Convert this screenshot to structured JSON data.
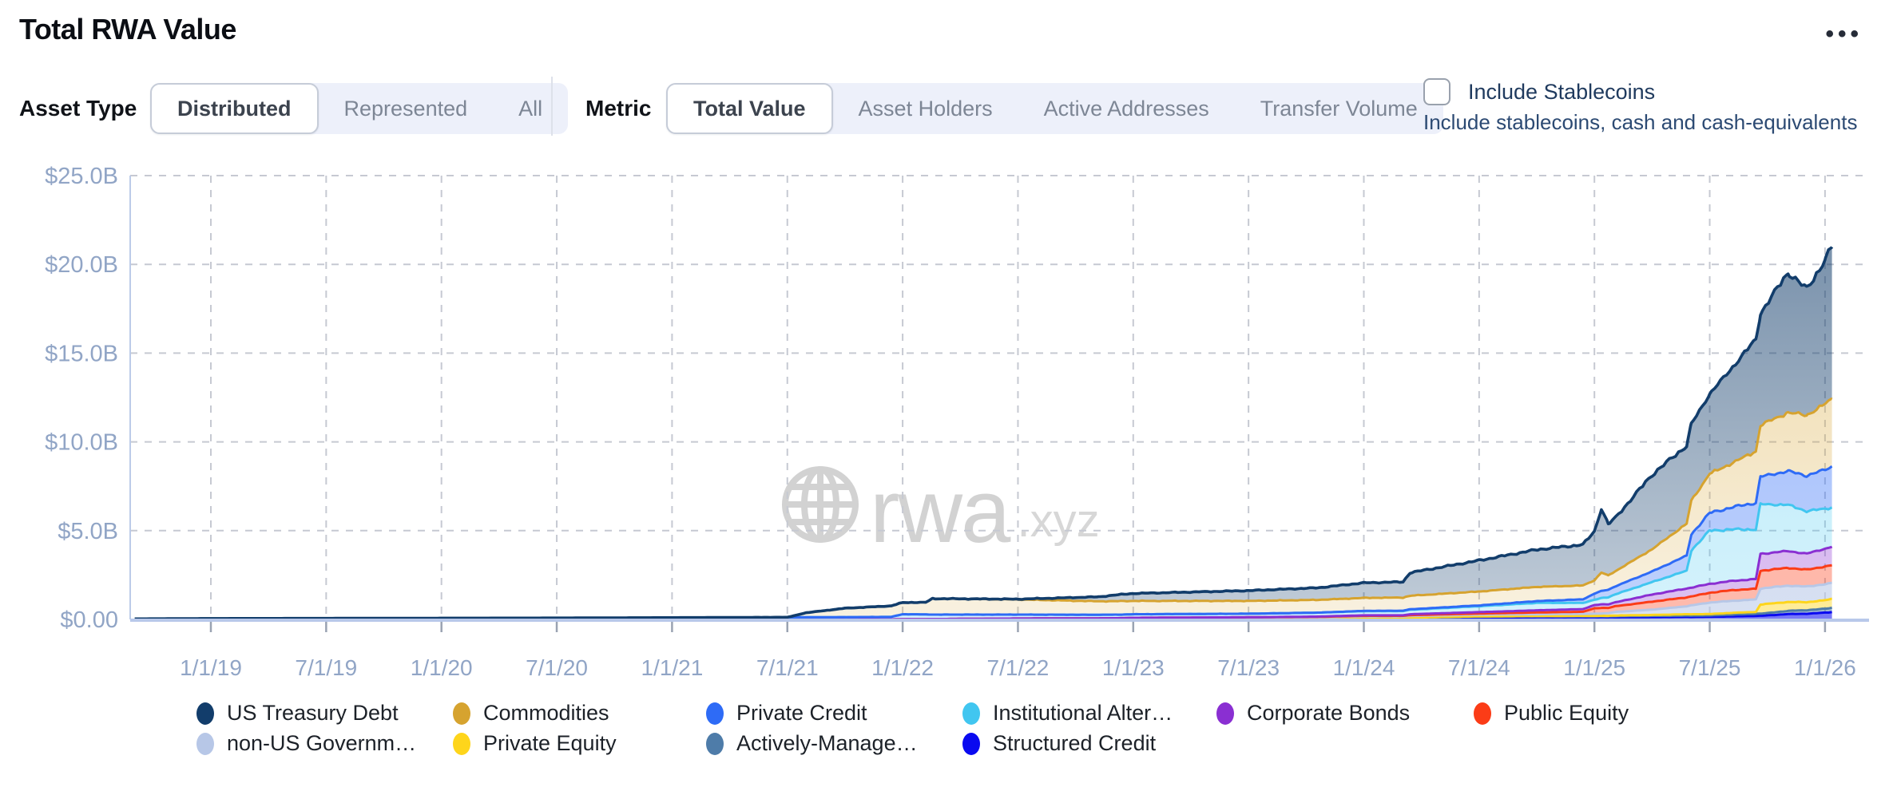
{
  "header": {
    "title": "Total RWA Value",
    "menu_label": "•••"
  },
  "controls": {
    "asset_type": {
      "label": "Asset Type",
      "options": [
        "Distributed",
        "Represented",
        "All"
      ],
      "selected": "Distributed"
    },
    "metric": {
      "label": "Metric",
      "options": [
        "Total Value",
        "Asset Holders",
        "Active Addresses",
        "Transfer Volume"
      ],
      "selected": "Total Value"
    },
    "stablecoins": {
      "label": "Include Stablecoins",
      "description": "Include stablecoins, cash and cash-equivalents",
      "checked": false
    }
  },
  "watermark": {
    "brand": "rwa",
    "tld": ".xyz",
    "icon": "globe-icon"
  },
  "colors": {
    "accent_background": "#edf0fa",
    "axis_label": "#91a5c6",
    "gridline": "#c6c9d2",
    "axis_line": "#bccbe8",
    "zero_line": "#b8c8ea",
    "tick_mark": "#9aa3b2",
    "watermark": "#d2d2d2",
    "title_text": "#0b0e14",
    "checkbox_text": "#1f3a5e"
  },
  "chart_data": {
    "type": "area",
    "stacked": true,
    "title": "Total RWA Value",
    "unit": "USD billions",
    "grid": "dashed",
    "legend_position": "bottom",
    "ylim": [
      0,
      25
    ],
    "y_tick_values": [
      25,
      20,
      15,
      10,
      5,
      0
    ],
    "y_tick_labels": [
      "$25.0B",
      "$20.0B",
      "$15.0B",
      "$10.0B",
      "$5.0B",
      "$0.00"
    ],
    "x_tick_years": [
      2019.0,
      2019.5,
      2020.0,
      2020.5,
      2021.0,
      2021.5,
      2022.0,
      2022.5,
      2023.0,
      2023.5,
      2024.0,
      2024.5,
      2025.0,
      2025.5,
      2026.0
    ],
    "x_tick_labels": [
      "1/1/19",
      "7/1/19",
      "1/1/20",
      "7/1/20",
      "1/1/21",
      "7/1/21",
      "1/1/22",
      "7/1/22",
      "1/1/23",
      "7/1/23",
      "1/1/24",
      "7/1/24",
      "1/1/25",
      "7/1/25",
      "1/1/26"
    ],
    "x_range_years": [
      2018.67,
      2026.03
    ],
    "anchors_t": [
      2018.67,
      2019.0,
      2019.5,
      2020.0,
      2020.5,
      2021.0,
      2021.5,
      2021.58,
      2021.75,
      2021.95,
      2022.0,
      2022.1,
      2022.13,
      2022.5,
      2022.85,
      2022.95,
      2023.0,
      2023.5,
      2023.8,
      2024.0,
      2024.17,
      2024.2,
      2024.5,
      2024.75,
      2024.95,
      2025.0,
      2025.03,
      2025.06,
      2025.09,
      2025.25,
      2025.4,
      2025.42,
      2025.5,
      2025.6,
      2025.7,
      2025.72,
      2025.84,
      2025.92,
      2026.0,
      2026.03
    ],
    "series": [
      {
        "name": "us_treasury",
        "label": "US Treasury Debt",
        "color": "#123d6b",
        "values": [
          0,
          0,
          0,
          0,
          0,
          0,
          0,
          0,
          0,
          0,
          0,
          0,
          0,
          0.02,
          0.25,
          0.38,
          0.42,
          0.58,
          0.68,
          0.85,
          0.88,
          1.3,
          1.75,
          2.1,
          2.3,
          2.75,
          3.6,
          2.9,
          3.0,
          4.2,
          4.4,
          4.3,
          4.5,
          5.4,
          6.3,
          6.3,
          7.9,
          7.1,
          8.1,
          8.6
        ]
      },
      {
        "name": "commodities",
        "label": "Commodities",
        "color": "#d6a32f",
        "values": [
          0,
          0,
          0,
          0,
          0,
          0,
          0,
          0.25,
          0.5,
          0.62,
          0.66,
          0.68,
          0.9,
          0.85,
          0.76,
          0.76,
          0.75,
          0.72,
          0.72,
          0.73,
          0.74,
          0.76,
          0.78,
          0.8,
          0.78,
          0.75,
          1.05,
          0.8,
          0.85,
          1.25,
          1.8,
          1.9,
          2.2,
          2.5,
          2.9,
          2.9,
          3.3,
          3.4,
          3.7,
          3.8
        ]
      },
      {
        "name": "private_credit",
        "label": "Private Credit",
        "color": "#2e6bf6",
        "values": [
          0,
          0,
          0,
          0,
          0,
          0,
          0,
          0,
          0,
          0,
          0,
          0,
          0,
          0,
          0,
          0,
          0,
          0,
          0,
          0.02,
          0.02,
          0.03,
          0.05,
          0.1,
          0.2,
          0.35,
          0.4,
          0.42,
          0.45,
          0.6,
          0.85,
          0.9,
          1.0,
          1.25,
          1.5,
          1.55,
          1.9,
          2.0,
          2.2,
          2.3
        ]
      },
      {
        "name": "institutional_alternative",
        "label": "Institutional Alter…",
        "color": "#41c6f0",
        "values": [
          0.03,
          0.05,
          0.06,
          0.07,
          0.08,
          0.1,
          0.12,
          0.12,
          0.13,
          0.14,
          0.27,
          0.26,
          0.25,
          0.22,
          0.2,
          0.2,
          0.2,
          0.2,
          0.22,
          0.23,
          0.24,
          0.25,
          0.33,
          0.42,
          0.35,
          0.3,
          0.35,
          0.4,
          0.45,
          0.7,
          1.0,
          2.1,
          3.0,
          2.9,
          2.8,
          2.8,
          2.6,
          2.4,
          2.25,
          2.2
        ]
      },
      {
        "name": "corporate_bonds",
        "label": "Corporate Bonds",
        "color": "#8a2fd2",
        "values": [
          0,
          0,
          0,
          0,
          0,
          0,
          0,
          0,
          0,
          0,
          0,
          0,
          0,
          0,
          0,
          0,
          0,
          0,
          0.02,
          0.03,
          0.03,
          0.05,
          0.08,
          0.12,
          0.15,
          0.18,
          0.2,
          0.2,
          0.22,
          0.4,
          0.5,
          0.5,
          0.5,
          0.52,
          0.55,
          0.95,
          0.95,
          0.9,
          1.0,
          1.05
        ]
      },
      {
        "name": "public_equity",
        "label": "Public Equity",
        "color": "#fb3c17",
        "values": [
          0,
          0,
          0,
          0,
          0,
          0,
          0,
          0,
          0,
          0,
          0,
          0,
          0,
          0,
          0.01,
          0.02,
          0.02,
          0.03,
          0.03,
          0.04,
          0.04,
          0.05,
          0.06,
          0.1,
          0.12,
          0.3,
          0.32,
          0.3,
          0.32,
          0.45,
          0.5,
          0.5,
          0.55,
          0.6,
          0.6,
          1.0,
          1.0,
          0.95,
          1.0,
          1.0
        ]
      },
      {
        "name": "non_us_gov",
        "label": "non-US Governm…",
        "color": "#b7c7e7",
        "values": [
          0,
          0,
          0,
          0,
          0,
          0,
          0,
          0,
          0,
          0,
          0.02,
          0.02,
          0.02,
          0.03,
          0.03,
          0.03,
          0.04,
          0.05,
          0.06,
          0.08,
          0.08,
          0.09,
          0.1,
          0.1,
          0.11,
          0.12,
          0.13,
          0.15,
          0.2,
          0.3,
          0.45,
          0.5,
          0.65,
          0.68,
          0.7,
          0.9,
          0.92,
          0.88,
          0.9,
          0.9
        ]
      },
      {
        "name": "private_equity",
        "label": "Private Equity",
        "color": "#fed51b",
        "values": [
          0,
          0,
          0,
          0,
          0,
          0,
          0,
          0,
          0,
          0,
          0,
          0,
          0,
          0,
          0,
          0,
          0,
          0,
          0,
          0.01,
          0.01,
          0.01,
          0.02,
          0.02,
          0.03,
          0.03,
          0.03,
          0.03,
          0.04,
          0.05,
          0.08,
          0.08,
          0.08,
          0.1,
          0.1,
          0.52,
          0.5,
          0.45,
          0.48,
          0.5
        ]
      },
      {
        "name": "actively_managed",
        "label": "Actively-Manage…",
        "color": "#4e7ca9",
        "values": [
          0,
          0,
          0,
          0,
          0,
          0,
          0,
          0,
          0,
          0,
          0,
          0,
          0,
          0.01,
          0.01,
          0.01,
          0.01,
          0.02,
          0.02,
          0.03,
          0.03,
          0.04,
          0.05,
          0.05,
          0.05,
          0.05,
          0.05,
          0.05,
          0.06,
          0.07,
          0.07,
          0.07,
          0.07,
          0.1,
          0.12,
          0.12,
          0.18,
          0.2,
          0.22,
          0.24
        ]
      },
      {
        "name": "structured_credit",
        "label": "Structured Credit",
        "color": "#0a0af0",
        "values": [
          0,
          0,
          0,
          0,
          0,
          0,
          0,
          0,
          0,
          0,
          0,
          0,
          0,
          0.01,
          0.01,
          0.01,
          0.02,
          0.02,
          0.03,
          0.04,
          0.04,
          0.05,
          0.1,
          0.12,
          0.12,
          0.12,
          0.12,
          0.12,
          0.12,
          0.13,
          0.14,
          0.14,
          0.15,
          0.17,
          0.2,
          0.2,
          0.3,
          0.32,
          0.38,
          0.41
        ]
      }
    ]
  }
}
